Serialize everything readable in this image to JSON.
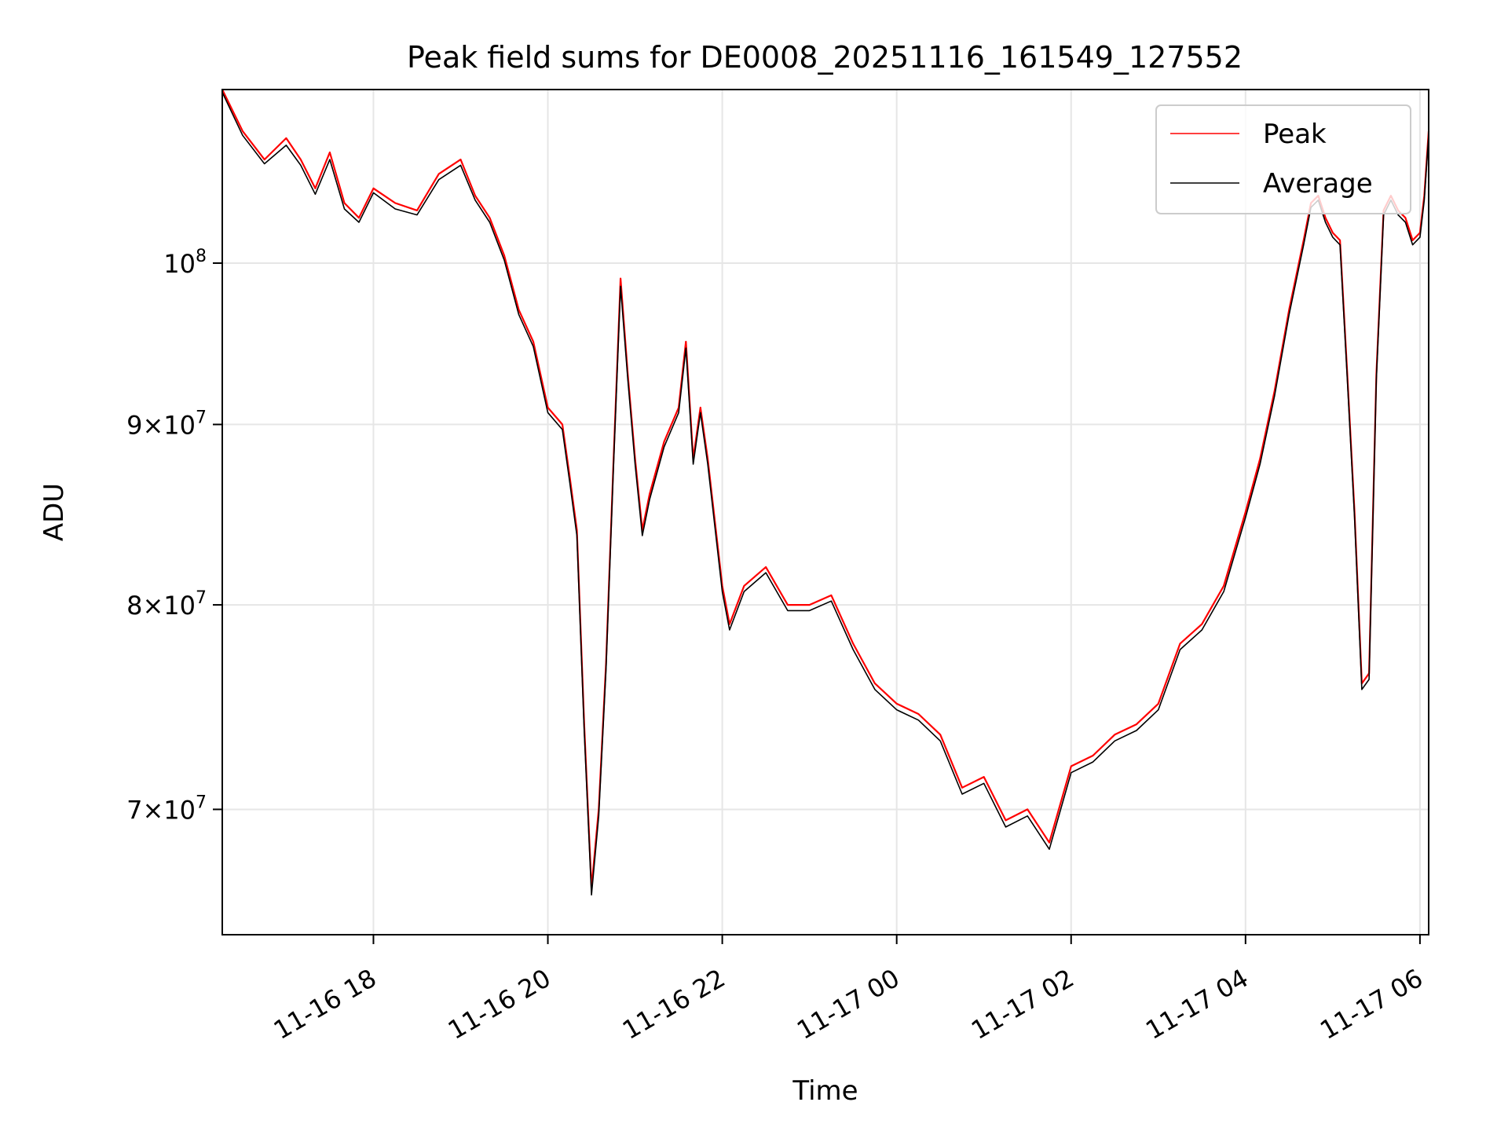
{
  "chart_data": {
    "type": "line",
    "title": "Peak field sums for DE0008_20251116_161549_127552",
    "xlabel": "Time",
    "ylabel": "ADU",
    "yscale": "log",
    "ylim": [
      64500000,
      112000000
    ],
    "xlim": [
      "2025-11-16 16:16",
      "2025-11-17 06:06"
    ],
    "grid": true,
    "legend_position": "top-right",
    "x_ticks": [
      {
        "at": "2025-11-16 18:00",
        "label": "11-16 18"
      },
      {
        "at": "2025-11-16 20:00",
        "label": "11-16 20"
      },
      {
        "at": "2025-11-16 22:00",
        "label": "11-16 22"
      },
      {
        "at": "2025-11-17 00:00",
        "label": "11-17 00"
      },
      {
        "at": "2025-11-17 02:00",
        "label": "11-17 02"
      },
      {
        "at": "2025-11-17 04:00",
        "label": "11-17 04"
      },
      {
        "at": "2025-11-17 06:00",
        "label": "11-17 06"
      }
    ],
    "y_ticks": [
      {
        "value": 100000000,
        "base": "10",
        "exp": "8"
      },
      {
        "value": 90000000,
        "mant": "9",
        "base": "10",
        "exp": "7"
      },
      {
        "value": 80000000,
        "mant": "8",
        "base": "10",
        "exp": "7"
      },
      {
        "value": 70000000,
        "mant": "7",
        "base": "10",
        "exp": "7"
      }
    ],
    "x": [
      "2025-11-16 16:16",
      "2025-11-16 16:30",
      "2025-11-16 16:45",
      "2025-11-16 17:00",
      "2025-11-16 17:10",
      "2025-11-16 17:20",
      "2025-11-16 17:30",
      "2025-11-16 17:40",
      "2025-11-16 17:50",
      "2025-11-16 18:00",
      "2025-11-16 18:15",
      "2025-11-16 18:30",
      "2025-11-16 18:45",
      "2025-11-16 19:00",
      "2025-11-16 19:10",
      "2025-11-16 19:20",
      "2025-11-16 19:30",
      "2025-11-16 19:40",
      "2025-11-16 19:50",
      "2025-11-16 20:00",
      "2025-11-16 20:10",
      "2025-11-16 20:15",
      "2025-11-16 20:20",
      "2025-11-16 20:25",
      "2025-11-16 20:30",
      "2025-11-16 20:35",
      "2025-11-16 20:40",
      "2025-11-16 20:45",
      "2025-11-16 20:50",
      "2025-11-16 20:55",
      "2025-11-16 21:00",
      "2025-11-16 21:05",
      "2025-11-16 21:10",
      "2025-11-16 21:20",
      "2025-11-16 21:30",
      "2025-11-16 21:35",
      "2025-11-16 21:40",
      "2025-11-16 21:45",
      "2025-11-16 21:50",
      "2025-11-16 22:00",
      "2025-11-16 22:05",
      "2025-11-16 22:15",
      "2025-11-16 22:30",
      "2025-11-16 22:45",
      "2025-11-16 23:00",
      "2025-11-16 23:15",
      "2025-11-16 23:30",
      "2025-11-16 23:45",
      "2025-11-17 00:00",
      "2025-11-17 00:15",
      "2025-11-17 00:30",
      "2025-11-17 00:45",
      "2025-11-17 01:00",
      "2025-11-17 01:15",
      "2025-11-17 01:30",
      "2025-11-17 01:45",
      "2025-11-17 02:00",
      "2025-11-17 02:15",
      "2025-11-17 02:30",
      "2025-11-17 02:45",
      "2025-11-17 03:00",
      "2025-11-17 03:15",
      "2025-11-17 03:30",
      "2025-11-17 03:45",
      "2025-11-17 04:00",
      "2025-11-17 04:10",
      "2025-11-17 04:20",
      "2025-11-17 04:30",
      "2025-11-17 04:40",
      "2025-11-17 04:45",
      "2025-11-17 04:50",
      "2025-11-17 04:55",
      "2025-11-17 05:00",
      "2025-11-17 05:05",
      "2025-11-17 05:10",
      "2025-11-17 05:15",
      "2025-11-17 05:20",
      "2025-11-17 05:25",
      "2025-11-17 05:30",
      "2025-11-17 05:35",
      "2025-11-17 05:40",
      "2025-11-17 05:45",
      "2025-11-17 05:50",
      "2025-11-17 05:55",
      "2025-11-17 06:00",
      "2025-11-17 06:03",
      "2025-11-17 06:06"
    ],
    "series": [
      {
        "name": "Peak",
        "color": "#ff0000",
        "values": [
          112000000,
          109000000,
          107000000,
          108500000,
          107000000,
          105000000,
          107500000,
          104000000,
          103000000,
          105000000,
          104000000,
          103500000,
          106000000,
          107000000,
          104500000,
          103000000,
          100500000,
          97000000,
          95000000,
          91000000,
          90000000,
          87000000,
          84000000,
          74000000,
          66500000,
          70000000,
          77000000,
          87500000,
          99000000,
          93000000,
          88000000,
          84000000,
          86000000,
          89000000,
          91000000,
          95000000,
          88000000,
          91000000,
          88000000,
          81000000,
          79000000,
          81000000,
          82000000,
          80000000,
          80000000,
          80500000,
          78000000,
          76000000,
          75000000,
          74500000,
          73500000,
          71000000,
          71500000,
          69500000,
          70000000,
          68500000,
          72000000,
          72500000,
          73500000,
          74000000,
          75000000,
          78000000,
          79000000,
          81000000,
          85000000,
          88000000,
          92000000,
          97000000,
          101500000,
          104000000,
          104500000,
          103000000,
          102000000,
          101500000,
          93000000,
          85000000,
          76000000,
          76500000,
          93000000,
          103500000,
          104500000,
          103500000,
          103000000,
          101500000,
          102000000,
          104500000,
          109000000
        ]
      },
      {
        "name": "Average",
        "color": "#000000",
        "values": [
          111800000,
          108700000,
          106700000,
          108000000,
          106600000,
          104600000,
          107000000,
          103600000,
          102700000,
          104700000,
          103600000,
          103200000,
          105600000,
          106600000,
          104200000,
          102700000,
          100200000,
          96700000,
          94700000,
          90700000,
          89700000,
          86700000,
          83700000,
          73700000,
          66200000,
          69700000,
          76700000,
          87200000,
          98500000,
          92700000,
          87700000,
          83700000,
          85700000,
          88700000,
          90700000,
          94600000,
          87700000,
          90700000,
          87700000,
          80700000,
          78700000,
          80700000,
          81700000,
          79700000,
          79700000,
          80200000,
          77700000,
          75700000,
          74700000,
          74200000,
          73200000,
          70700000,
          71200000,
          69200000,
          69700000,
          68200000,
          71700000,
          72200000,
          73200000,
          73700000,
          74700000,
          77700000,
          78700000,
          80700000,
          84700000,
          87700000,
          91700000,
          96700000,
          101200000,
          103700000,
          104200000,
          102700000,
          101700000,
          101200000,
          92700000,
          84700000,
          75700000,
          76200000,
          92700000,
          103200000,
          104200000,
          103200000,
          102700000,
          101200000,
          101700000,
          104200000,
          108700000
        ]
      }
    ]
  }
}
